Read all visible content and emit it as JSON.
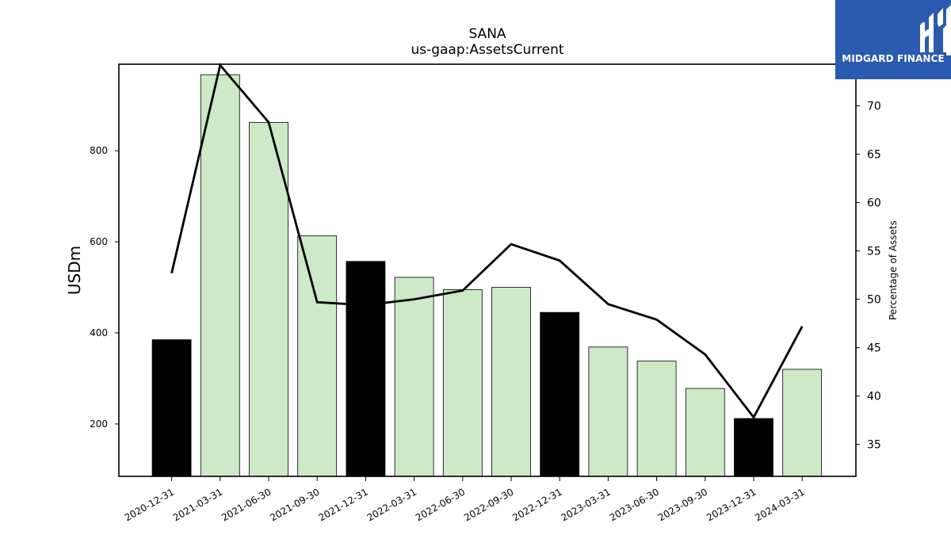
{
  "logo": {
    "text": "MIDGARD FINANCE",
    "background": "#2a5bb0"
  },
  "chart_data": {
    "type": "bar",
    "title": "SANA",
    "subtitle": "us-gaap:AssetsCurrent",
    "ylabel": "USDm",
    "y2label": "Percentage of Assets",
    "categories": [
      "2020-12-31",
      "2021-03-31",
      "2021-06-30",
      "2021-09-30",
      "2021-12-31",
      "2022-03-31",
      "2022-06-30",
      "2022-09-30",
      "2022-12-31",
      "2023-03-31",
      "2023-06-30",
      "2023-09-30",
      "2023-12-31",
      "2024-03-31"
    ],
    "ylim": [
      85,
      990
    ],
    "yticks": [
      200,
      400,
      600,
      800
    ],
    "y2lim": [
      31.7,
      74.3
    ],
    "y2ticks": [
      35,
      40,
      45,
      50,
      55,
      60,
      65,
      70
    ],
    "series": [
      {
        "name": "",
        "kind": "bar",
        "values": [
          385,
          967,
          862,
          613,
          557,
          522,
          495,
          500,
          445,
          369,
          338,
          278,
          212,
          320
        ],
        "colors": [
          "#000000",
          "#cde9c8",
          "#cde9c8",
          "#cde9c8",
          "#000000",
          "#cde9c8",
          "#cde9c8",
          "#cde9c8",
          "#000000",
          "#cde9c8",
          "#cde9c8",
          "#cde9c8",
          "#000000",
          "#cde9c8"
        ]
      },
      {
        "name": "",
        "kind": "line",
        "axis": "right",
        "values": [
          52.7,
          74.2,
          68.3,
          49.7,
          49.4,
          50.0,
          50.9,
          55.7,
          54.0,
          49.5,
          47.9,
          44.3,
          37.8,
          47.2
        ],
        "color": "#000000"
      }
    ],
    "grid": false,
    "legend": "none"
  }
}
